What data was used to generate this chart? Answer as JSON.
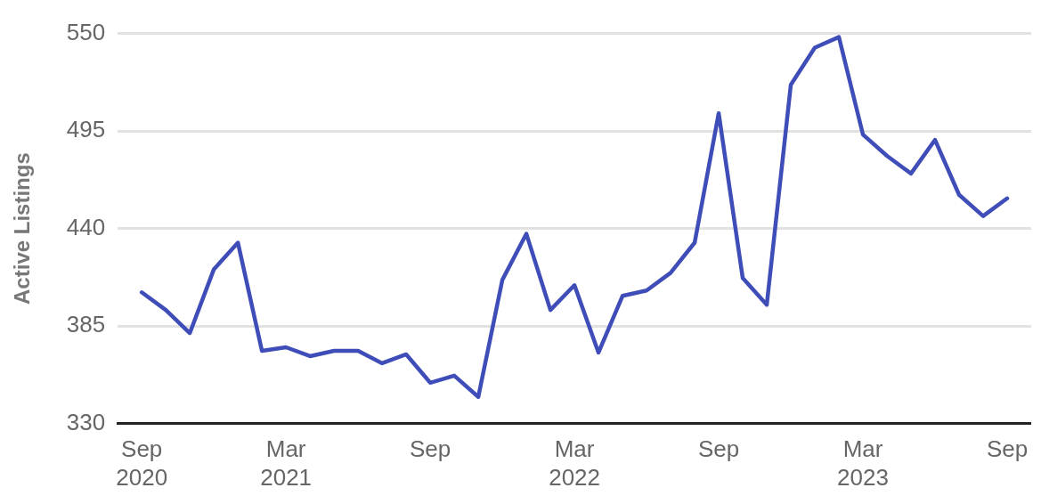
{
  "chart_data": {
    "type": "line",
    "ylabel": "Active Listings",
    "x": [
      "2020-09",
      "2020-10",
      "2020-11",
      "2020-12",
      "2021-01",
      "2021-02",
      "2021-03",
      "2021-04",
      "2021-05",
      "2021-06",
      "2021-07",
      "2021-08",
      "2021-09",
      "2021-10",
      "2021-11",
      "2021-12",
      "2022-01",
      "2022-02",
      "2022-03",
      "2022-04",
      "2022-05",
      "2022-06",
      "2022-07",
      "2022-08",
      "2022-09",
      "2022-10",
      "2022-11",
      "2022-12",
      "2023-01",
      "2023-02",
      "2023-03",
      "2023-04",
      "2023-05",
      "2023-06",
      "2023-07",
      "2023-08",
      "2023-09"
    ],
    "series": [
      {
        "color": "#3f4db8",
        "values": [
          404,
          394,
          381,
          417,
          432,
          371,
          373,
          368,
          371,
          371,
          364,
          369,
          353,
          357,
          345,
          411,
          437,
          394,
          408,
          370,
          402,
          405,
          415,
          432,
          505,
          412,
          397,
          521,
          542,
          548,
          493,
          481,
          471,
          490,
          459,
          447,
          457
        ]
      }
    ],
    "xlim": [
      "2020-08",
      "2023-10"
    ],
    "xticks": [
      {
        "value": "2020-09",
        "label": "Sep 2020"
      },
      {
        "value": "2021-03",
        "label": "Mar 2021"
      },
      {
        "value": "2021-09",
        "label": "Sep"
      },
      {
        "value": "2022-03",
        "label": "Mar 2022"
      },
      {
        "value": "2022-09",
        "label": "Sep"
      },
      {
        "value": "2023-03",
        "label": "Mar 2023"
      },
      {
        "value": "2023-09",
        "label": "Sep"
      }
    ],
    "ylim": [
      330,
      550
    ],
    "yticks": [
      330,
      385,
      440,
      495,
      550
    ],
    "grid": "y",
    "legend": false,
    "marker": "none",
    "line_style": "solid"
  }
}
